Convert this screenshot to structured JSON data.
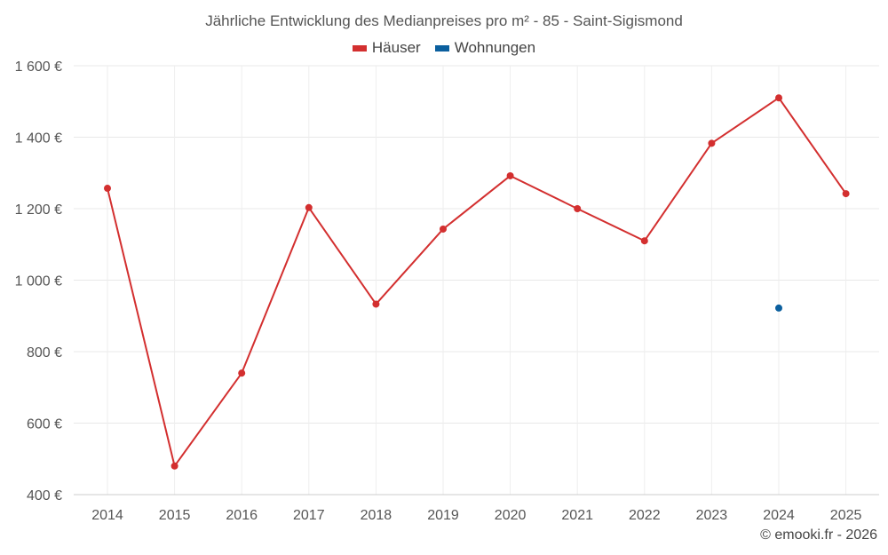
{
  "chart_data": {
    "type": "line",
    "title": "Jährliche Entwicklung des Medianpreises pro m² - 85 - Saint-Sigismond",
    "categories": [
      "2014",
      "2015",
      "2016",
      "2017",
      "2018",
      "2019",
      "2020",
      "2021",
      "2022",
      "2023",
      "2024",
      "2025"
    ],
    "series": [
      {
        "name": "Häuser",
        "color": "#d32f2f",
        "values": [
          1257,
          480,
          740,
          1203,
          933,
          1143,
          1292,
          1200,
          1110,
          1383,
          1510,
          1242
        ]
      },
      {
        "name": "Wohnungen",
        "color": "#0b5f9e",
        "values": [
          null,
          null,
          null,
          null,
          null,
          null,
          null,
          null,
          null,
          null,
          922,
          null
        ]
      }
    ],
    "ylim": [
      400,
      1600
    ],
    "yticks": [
      400,
      600,
      800,
      1000,
      1200,
      1400,
      1600
    ],
    "ytick_labels": [
      "400 €",
      "600 €",
      "800 €",
      "1 000 €",
      "1 200 €",
      "1 400 €",
      "1 600 €"
    ],
    "grid": true,
    "legend_position": "top-center"
  },
  "credit": "© emooki.fr - 2026"
}
